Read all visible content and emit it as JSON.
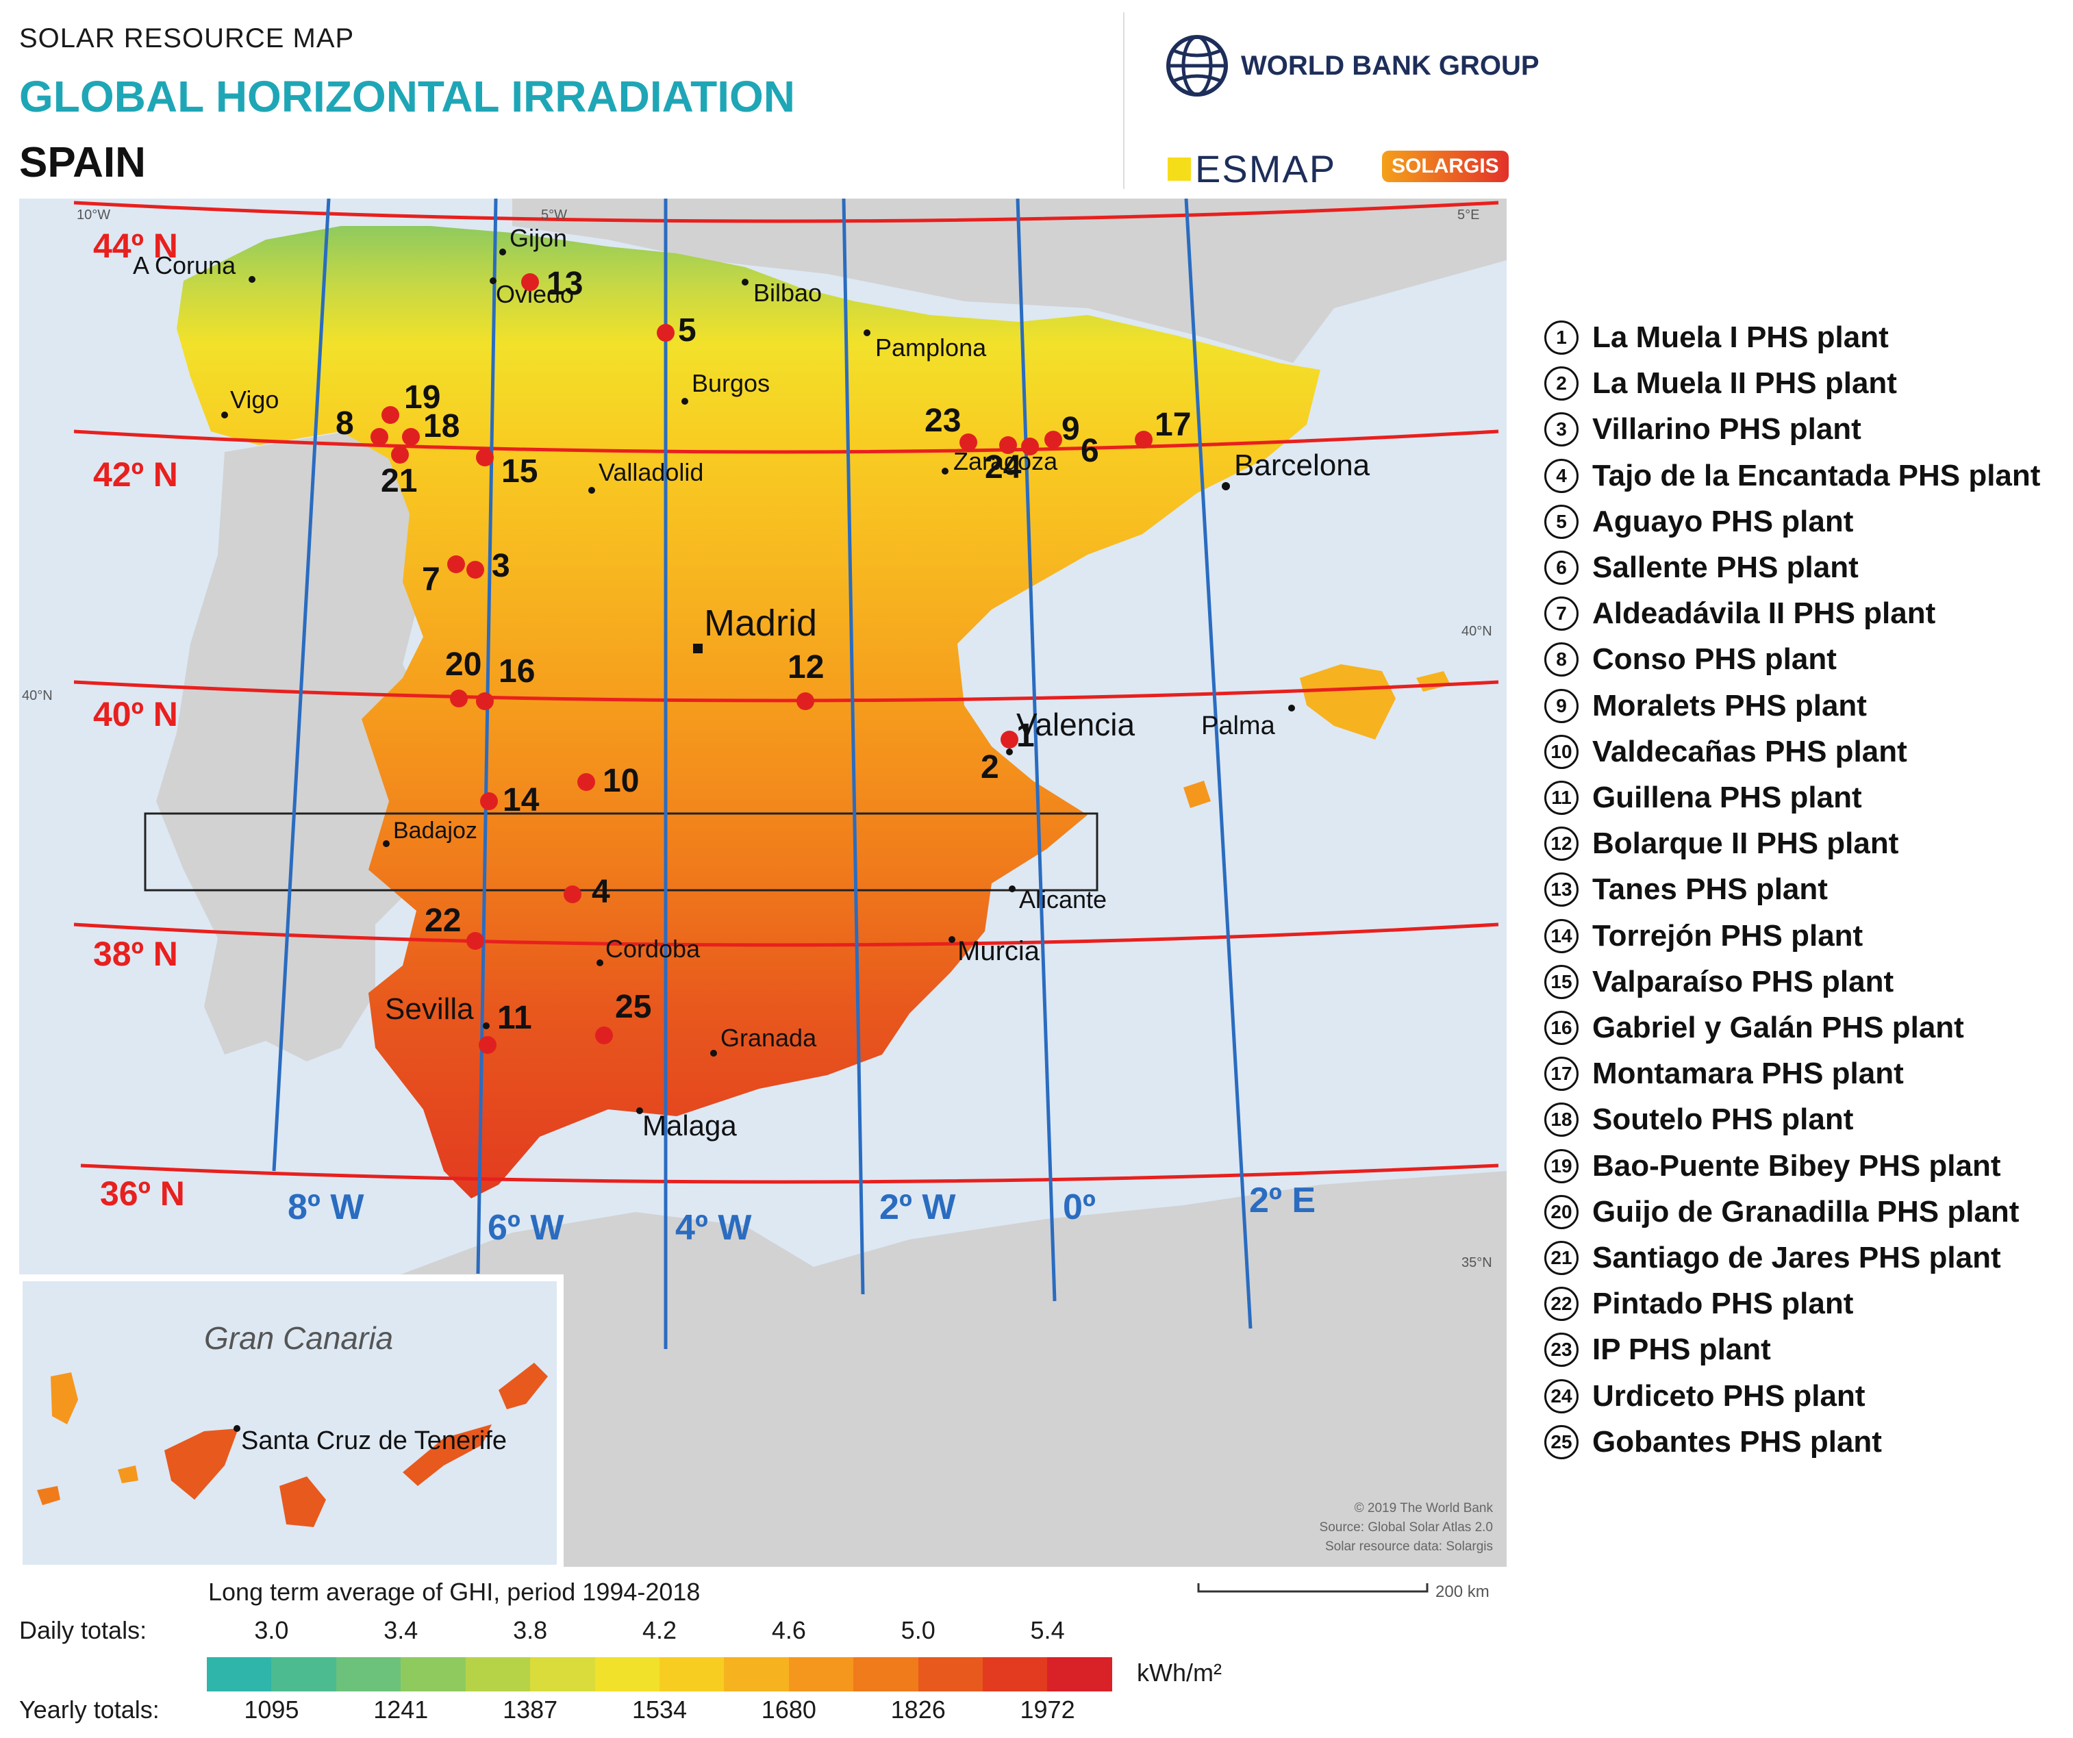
{
  "header": {
    "subtitle": "SOLAR RESOURCE MAP",
    "title": "GLOBAL HORIZONTAL IRRADIATION",
    "country": "SPAIN"
  },
  "logos": {
    "world_bank": "WORLD BANK GROUP",
    "esmap": "ESMAP",
    "solargis": "SOLARGIS"
  },
  "map": {
    "lat_labels": [
      "44º N",
      "42º N",
      "40º N",
      "38º N",
      "36º N"
    ],
    "lon_labels": [
      "8º W",
      "6º W",
      "4º W",
      "2º W",
      "0º",
      "2º E"
    ],
    "edge_labels": [
      "10°W",
      "5°W",
      "5°E",
      "40°N",
      "40°N",
      "35°N"
    ],
    "cities": [
      "A Coruna",
      "Gijon",
      "Oviedo",
      "Bilbao",
      "Pamplona",
      "Vigo",
      "Burgos",
      "Valladolid",
      "Zaragoza",
      "Barcelona",
      "Madrid",
      "Valencia",
      "Palma",
      "Badajoz",
      "Alicante",
      "Cordoba",
      "Murcia",
      "Sevilla",
      "Granada",
      "Malaga"
    ],
    "plant_numbers": [
      "1",
      "2",
      "3",
      "4",
      "5",
      "6",
      "7",
      "8",
      "9",
      "10",
      "11",
      "12",
      "13",
      "14",
      "15",
      "16",
      "17",
      "18",
      "19",
      "20",
      "21",
      "22",
      "23",
      "24",
      "25"
    ],
    "inset_title": "Gran Canaria",
    "inset_city": "Santa Cruz de Tenerife",
    "copyright": [
      "© 2019 The World Bank",
      "Source: Global Solar Atlas 2.0",
      "Solar resource data: Solargis"
    ],
    "scale_bar": "200 km"
  },
  "legend": {
    "plants": [
      "La Muela I PHS plant",
      "La Muela II PHS plant",
      "Villarino PHS plant",
      "Tajo de la Encantada PHS plant",
      "Aguayo PHS plant",
      "Sallente PHS plant",
      "Aldeadávila II PHS plant",
      "Conso PHS plant",
      "Moralets PHS plant",
      "Valdecañas PHS plant",
      "Guillena PHS plant",
      "Bolarque II PHS plant",
      "Tanes PHS plant",
      "Torrejón PHS plant",
      "Valparaíso PHS plant",
      "Gabriel y Galán PHS plant",
      "Montamara PHS plant",
      "Soutelo PHS plant",
      "Bao-Puente Bibey PHS plant",
      "Guijo de Granadilla PHS plant",
      "Santiago de Jares PHS plant",
      "Pintado PHS plant",
      "IP PHS plant",
      "Urdiceto PHS plant",
      "Gobantes PHS plant"
    ]
  },
  "color_scale": {
    "caption": "Long term average of GHI, period 1994-2018",
    "daily_label": "Daily totals:",
    "yearly_label": "Yearly totals:",
    "daily_values": [
      "3.0",
      "3.4",
      "3.8",
      "4.2",
      "4.6",
      "5.0",
      "5.4"
    ],
    "yearly_values": [
      "1095",
      "1241",
      "1387",
      "1534",
      "1680",
      "1826",
      "1972"
    ],
    "unit": "kWh/m²",
    "colors": [
      "#2fb5a9",
      "#4dbb90",
      "#6cc27a",
      "#8fca5e",
      "#b6d348",
      "#d9dc3a",
      "#f2e12a",
      "#f8cd22",
      "#f7b21f",
      "#f5971c",
      "#f07b1b",
      "#e8591d",
      "#e23b20",
      "#d92128"
    ]
  },
  "colors": {
    "lat_lines": "#e8201e",
    "lon_lines": "#2a6cc0",
    "plant_marker": "#e02020",
    "sea": "#dde8f3",
    "land_other": "#d2d2d2"
  }
}
